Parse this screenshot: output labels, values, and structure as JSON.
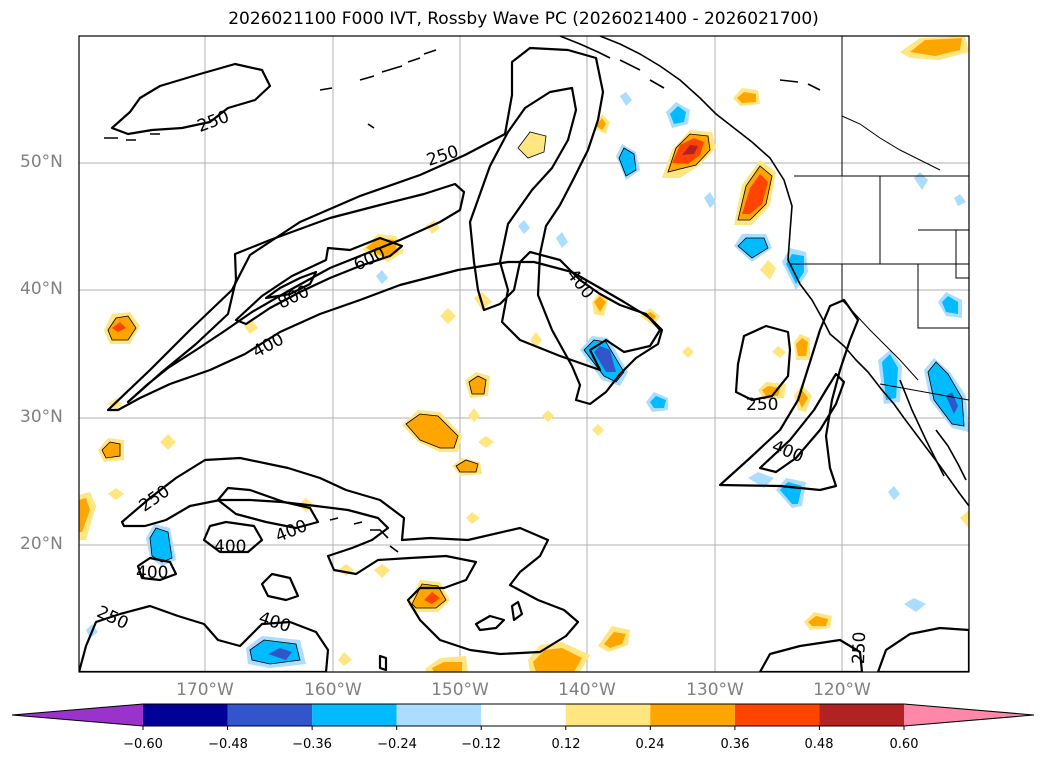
{
  "title": "2026021100 F000 IVT, Rossby Wave PC (2026021400 - 2026021700)",
  "map": {
    "lat_labels": [
      "50°N",
      "40°N",
      "30°N",
      "20°N"
    ],
    "lon_labels": [
      "170°W",
      "160°W",
      "150°W",
      "140°W",
      "130°W",
      "120°W"
    ],
    "contour_labels": [
      "250",
      "250",
      "250",
      "250",
      "250",
      "250",
      "400",
      "400",
      "400",
      "400",
      "400",
      "400",
      "400",
      "400",
      "600",
      "800"
    ]
  },
  "colorbar": {
    "tick_labels": [
      "−0.60",
      "−0.48",
      "−0.36",
      "−0.24",
      "−0.12",
      "0.12",
      "0.24",
      "0.36",
      "0.48",
      "0.60"
    ],
    "colors": [
      "#9933cc",
      "#000099",
      "#3355cc",
      "#00bbff",
      "#aaddff",
      "#ffffff",
      "#ffe680",
      "#ffa500",
      "#ff4400",
      "#b22222",
      "#ff88aa"
    ]
  }
}
